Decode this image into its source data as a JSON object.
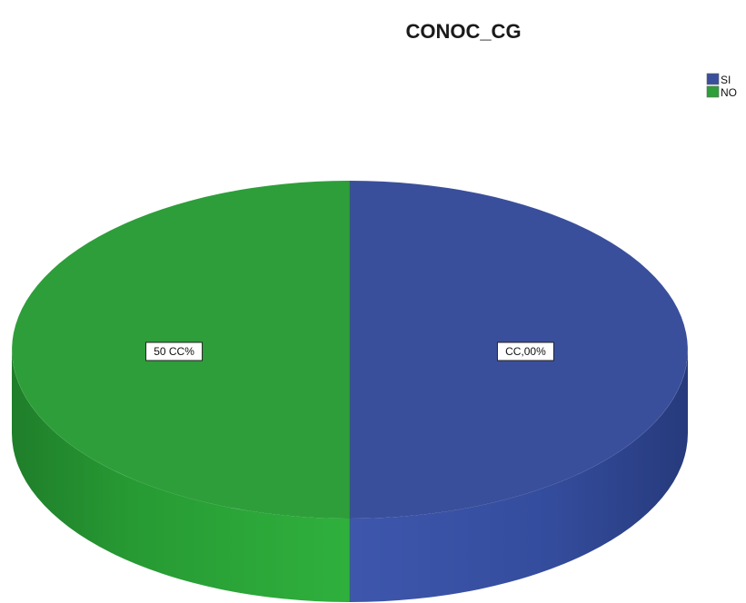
{
  "chart_data": {
    "type": "pie",
    "title": "CONOC_CG",
    "slices": [
      {
        "name": "SI",
        "value": 50.0,
        "label": "CC,00%",
        "color": "#3a4f9b"
      },
      {
        "name": "NO",
        "value": 50.0,
        "label": "50 CC%",
        "color": "#2e9e3a"
      }
    ],
    "legend": {
      "placement": "top-right"
    },
    "style": "3d"
  }
}
